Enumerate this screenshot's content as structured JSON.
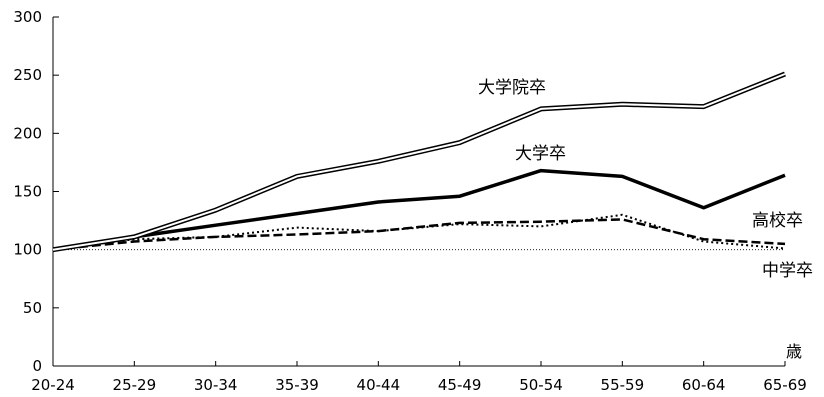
{
  "chart_data": {
    "type": "line",
    "categories": [
      "20-24",
      "25-29",
      "30-34",
      "35-39",
      "40-44",
      "45-49",
      "50-54",
      "55-59",
      "60-64",
      "65-69"
    ],
    "x_unit_label": "歳",
    "ylim": [
      0,
      300
    ],
    "yticks": [
      0,
      50,
      100,
      150,
      200,
      250,
      300
    ],
    "grid": false,
    "baseline": 100,
    "series": [
      {
        "name": "大学院卒",
        "style": "double",
        "color": "#000000",
        "values": [
          100,
          111,
          134,
          163,
          176,
          192,
          221,
          225,
          223,
          251
        ]
      },
      {
        "name": "大学卒",
        "style": "thick",
        "color": "#000000",
        "values": [
          100,
          111,
          121,
          131,
          141,
          146,
          168,
          163,
          136,
          164
        ]
      },
      {
        "name": "高校卒",
        "style": "dashed",
        "color": "#000000",
        "values": [
          100,
          107,
          111,
          113,
          116,
          123,
          124,
          126,
          109,
          105
        ]
      },
      {
        "name": "中学卒",
        "style": "dotted",
        "color": "#000000",
        "values": [
          100,
          109,
          111,
          119,
          116,
          122,
          120,
          130,
          107,
          101
        ]
      }
    ]
  }
}
